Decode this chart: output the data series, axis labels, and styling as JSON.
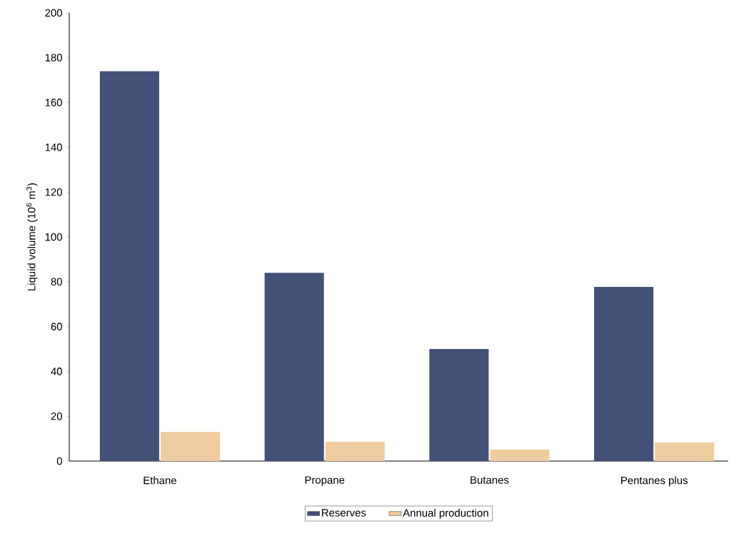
{
  "chart_data": {
    "type": "bar",
    "ylabel": "Liquid volume (10$^{6}$ m$^{3}$)",
    "categories": [
      "Ethane",
      "Propane",
      "Butanes",
      "Pentanes plus"
    ],
    "series": [
      {
        "name": "Reserves",
        "color": "#435077",
        "values": [
          174,
          84,
          50,
          77.7
        ]
      },
      {
        "name": "Annual production",
        "color": "#f0cda0",
        "values": [
          13,
          8.6,
          5.1,
          8.3
        ]
      }
    ],
    "ylim": [
      0,
      200
    ],
    "yticks": [
      0,
      20,
      40,
      60,
      80,
      100,
      120,
      140,
      160,
      180,
      200
    ],
    "grid": false,
    "legend": "bottom"
  }
}
